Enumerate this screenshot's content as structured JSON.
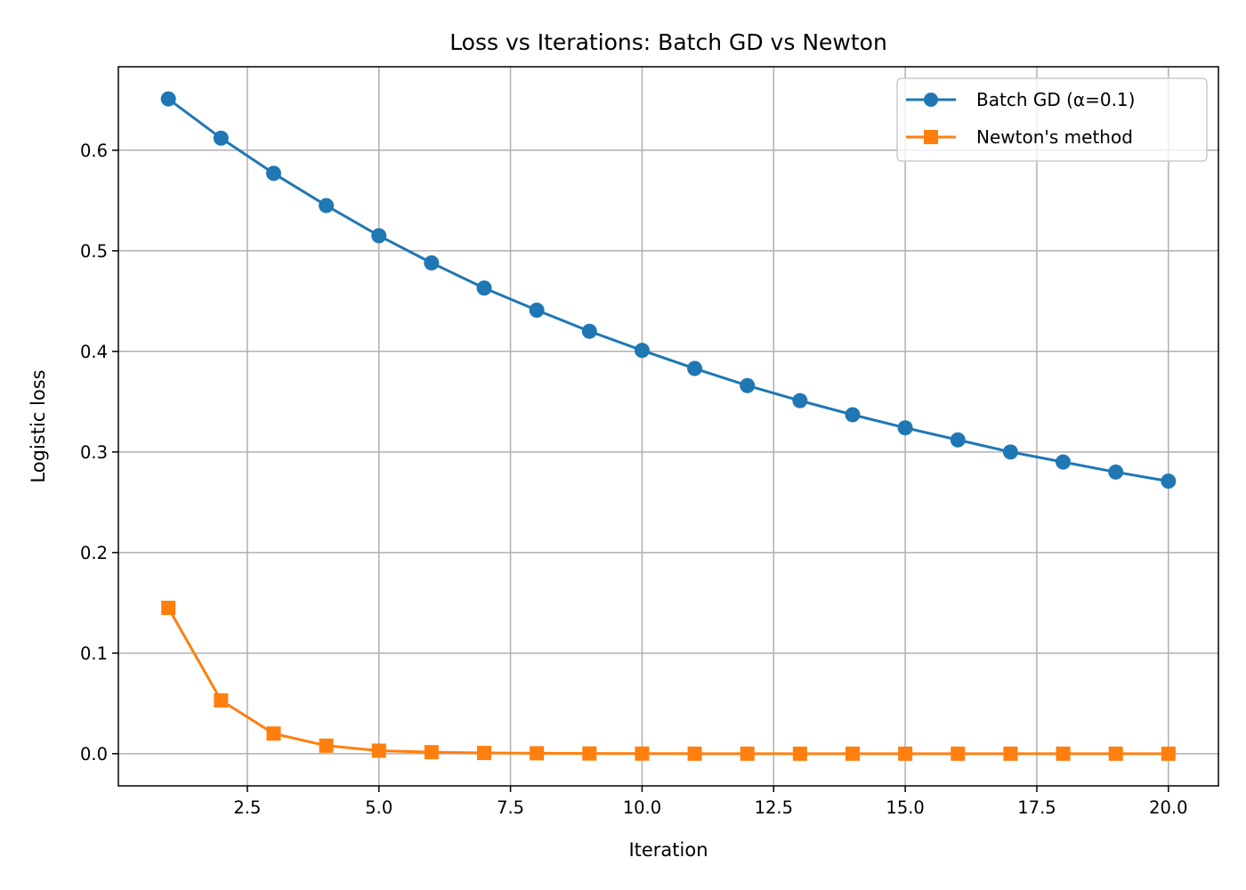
{
  "chart_data": {
    "type": "line",
    "title": "Loss vs Iterations: Batch GD vs Newton",
    "xlabel": "Iteration",
    "ylabel": "Logistic loss",
    "xlim": [
      0.05,
      20.95
    ],
    "ylim": [
      -0.032,
      0.683
    ],
    "xticks": [
      2.5,
      5.0,
      7.5,
      10.0,
      12.5,
      15.0,
      17.5,
      20.0
    ],
    "xtick_labels": [
      "2.5",
      "5.0",
      "7.5",
      "10.0",
      "12.5",
      "15.0",
      "17.5",
      "20.0"
    ],
    "yticks": [
      0.0,
      0.1,
      0.2,
      0.3,
      0.4,
      0.5,
      0.6
    ],
    "ytick_labels": [
      "0.0",
      "0.1",
      "0.2",
      "0.3",
      "0.4",
      "0.5",
      "0.6"
    ],
    "grid": true,
    "legend_position": "top-right",
    "x": [
      1,
      2,
      3,
      4,
      5,
      6,
      7,
      8,
      9,
      10,
      11,
      12,
      13,
      14,
      15,
      16,
      17,
      18,
      19,
      20
    ],
    "series": [
      {
        "name": "Batch GD (α=0.1)",
        "color": "#1f77b4",
        "marker": "circle",
        "values": [
          0.651,
          0.612,
          0.577,
          0.545,
          0.515,
          0.488,
          0.463,
          0.441,
          0.42,
          0.401,
          0.383,
          0.366,
          0.351,
          0.337,
          0.324,
          0.312,
          0.3,
          0.29,
          0.28,
          0.271
        ]
      },
      {
        "name": "Newton's method",
        "color": "#ff7f0e",
        "marker": "square",
        "values": [
          0.145,
          0.053,
          0.02,
          0.008,
          0.003,
          0.0015,
          0.0007,
          0.0004,
          0.0002,
          0.0001,
          0.0,
          0.0,
          0.0,
          0.0,
          0.0,
          0.0,
          0.0,
          0.0,
          0.0,
          0.0
        ]
      }
    ]
  }
}
